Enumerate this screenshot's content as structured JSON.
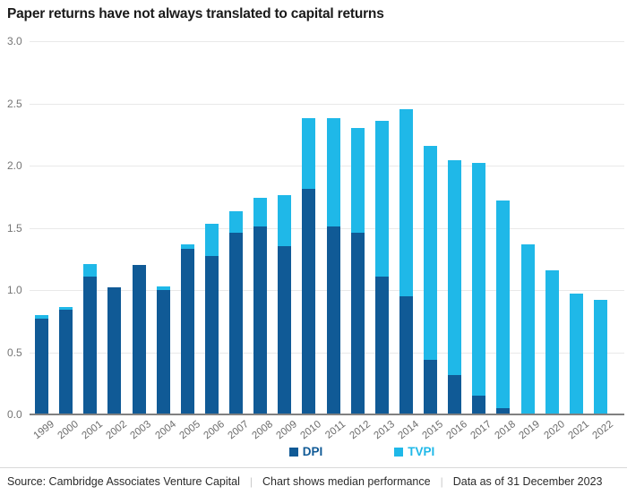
{
  "title": "Paper returns have not always translated to capital returns",
  "chart_data": {
    "type": "bar",
    "subtype": "stacked-overlay",
    "description": "Dark segment = DPI; light segment extends bar up to TVPI total",
    "categories": [
      "1999",
      "2000",
      "2001",
      "2002",
      "2003",
      "2004",
      "2005",
      "2006",
      "2007",
      "2008",
      "2009",
      "2010",
      "2011",
      "2012",
      "2013",
      "2014",
      "2015",
      "2016",
      "2017",
      "2018",
      "2019",
      "2020",
      "2021",
      "2022"
    ],
    "series": [
      {
        "name": "DPI",
        "color": "#105a96",
        "values": [
          0.77,
          0.84,
          1.11,
          1.02,
          1.2,
          1.0,
          1.33,
          1.27,
          1.46,
          1.51,
          1.35,
          1.81,
          1.51,
          1.46,
          1.11,
          0.95,
          0.44,
          0.32,
          0.15,
          0.05,
          0.0,
          0.0,
          0.0,
          0.0
        ]
      },
      {
        "name": "TVPI",
        "color": "#1fb8e8",
        "values": [
          0.8,
          0.86,
          1.21,
          1.02,
          1.2,
          1.03,
          1.37,
          1.53,
          1.63,
          1.74,
          1.76,
          2.38,
          2.38,
          2.3,
          2.36,
          2.45,
          2.16,
          2.04,
          2.02,
          1.72,
          1.37,
          1.16,
          0.97,
          0.92
        ]
      }
    ],
    "title": "Paper returns have not always translated to capital returns",
    "xlabel": "",
    "ylabel": "",
    "ylim": [
      0,
      3.0
    ],
    "yticks": [
      3.0,
      2.5,
      2.0,
      1.5,
      1.0,
      0.5,
      0.0
    ],
    "ytick_labels": [
      "3.0",
      "2.5",
      "2.0",
      "1.5",
      "1.0",
      "0.5",
      "0.0"
    ],
    "grid": "horizontal",
    "legend_position": "bottom-center"
  },
  "colors": {
    "dpi": "#105a96",
    "tvpi": "#1fb8e8",
    "gridline": "#e9e9e9",
    "axis": "#808080",
    "tick_text": "#757575"
  },
  "legend": {
    "items": [
      {
        "label": "DPI",
        "color": "#105a96"
      },
      {
        "label": "TVPI",
        "color": "#1fb8e8"
      }
    ]
  },
  "footer": {
    "source": "Source: Cambridge Associates Venture Capital",
    "note": "Chart shows median performance",
    "asof": "Data as of 31 December 2023",
    "separator": "|"
  }
}
